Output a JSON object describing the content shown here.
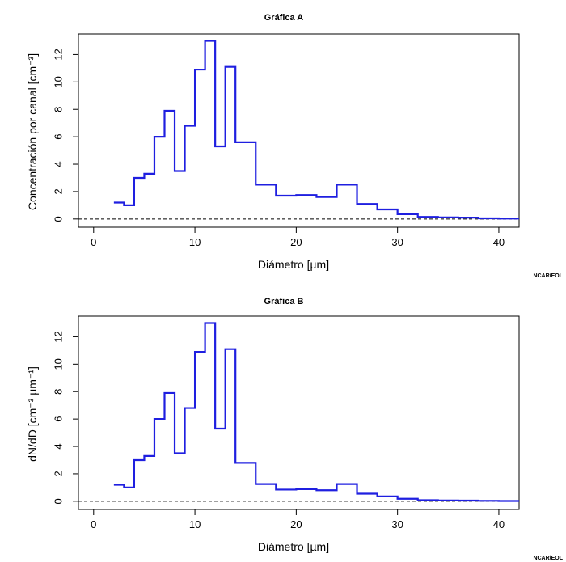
{
  "credit": "NCAR/EOL",
  "chart_data": [
    {
      "type": "line",
      "step": true,
      "title": "Gráfica A",
      "xlabel": "Diámetro [µm]",
      "ylabel": "Concentración por canal [cm⁻³]",
      "xlim": [
        -1.5,
        42
      ],
      "ylim": [
        -0.6,
        13.5
      ],
      "xticks": [
        0,
        10,
        20,
        30,
        40
      ],
      "yticks": [
        0,
        2,
        4,
        6,
        8,
        10,
        12
      ],
      "reference_line": {
        "y": 0,
        "style": "dashed"
      },
      "series_color": "#1f1fe0",
      "bins": [
        {
          "x0": 2,
          "x1": 3,
          "y": 1.2
        },
        {
          "x0": 3,
          "x1": 4,
          "y": 1.0
        },
        {
          "x0": 4,
          "x1": 5,
          "y": 3.0
        },
        {
          "x0": 5,
          "x1": 6,
          "y": 3.3
        },
        {
          "x0": 6,
          "x1": 7,
          "y": 6.0
        },
        {
          "x0": 7,
          "x1": 8,
          "y": 7.9
        },
        {
          "x0": 8,
          "x1": 9,
          "y": 3.5
        },
        {
          "x0": 9,
          "x1": 10,
          "y": 6.8
        },
        {
          "x0": 10,
          "x1": 11,
          "y": 10.9
        },
        {
          "x0": 11,
          "x1": 12,
          "y": 13.0
        },
        {
          "x0": 12,
          "x1": 13,
          "y": 5.3
        },
        {
          "x0": 13,
          "x1": 14,
          "y": 11.1
        },
        {
          "x0": 14,
          "x1": 16,
          "y": 5.6
        },
        {
          "x0": 16,
          "x1": 18,
          "y": 2.5
        },
        {
          "x0": 18,
          "x1": 20,
          "y": 1.7
        },
        {
          "x0": 20,
          "x1": 22,
          "y": 1.75
        },
        {
          "x0": 22,
          "x1": 24,
          "y": 1.6
        },
        {
          "x0": 24,
          "x1": 26,
          "y": 2.5
        },
        {
          "x0": 26,
          "x1": 28,
          "y": 1.1
        },
        {
          "x0": 28,
          "x1": 30,
          "y": 0.7
        },
        {
          "x0": 30,
          "x1": 32,
          "y": 0.35
        },
        {
          "x0": 32,
          "x1": 34,
          "y": 0.15
        },
        {
          "x0": 34,
          "x1": 36,
          "y": 0.12
        },
        {
          "x0": 36,
          "x1": 38,
          "y": 0.1
        },
        {
          "x0": 38,
          "x1": 40,
          "y": 0.05
        },
        {
          "x0": 40,
          "x1": 42,
          "y": 0.03
        }
      ]
    },
    {
      "type": "line",
      "step": true,
      "title": "Gráfica B",
      "xlabel": "Diámetro [µm]",
      "ylabel": "dN/dD [cm⁻³ µm⁻¹]",
      "xlim": [
        -1.5,
        42
      ],
      "ylim": [
        -0.6,
        13.5
      ],
      "xticks": [
        0,
        10,
        20,
        30,
        40
      ],
      "yticks": [
        0,
        2,
        4,
        6,
        8,
        10,
        12
      ],
      "reference_line": {
        "y": 0,
        "style": "dashed"
      },
      "series_color": "#1f1fe0",
      "bins": [
        {
          "x0": 2,
          "x1": 3,
          "y": 1.2
        },
        {
          "x0": 3,
          "x1": 4,
          "y": 1.0
        },
        {
          "x0": 4,
          "x1": 5,
          "y": 3.0
        },
        {
          "x0": 5,
          "x1": 6,
          "y": 3.3
        },
        {
          "x0": 6,
          "x1": 7,
          "y": 6.0
        },
        {
          "x0": 7,
          "x1": 8,
          "y": 7.9
        },
        {
          "x0": 8,
          "x1": 9,
          "y": 3.5
        },
        {
          "x0": 9,
          "x1": 10,
          "y": 6.8
        },
        {
          "x0": 10,
          "x1": 11,
          "y": 10.9
        },
        {
          "x0": 11,
          "x1": 12,
          "y": 13.0
        },
        {
          "x0": 12,
          "x1": 13,
          "y": 5.3
        },
        {
          "x0": 13,
          "x1": 14,
          "y": 11.1
        },
        {
          "x0": 14,
          "x1": 16,
          "y": 2.8
        },
        {
          "x0": 16,
          "x1": 18,
          "y": 1.25
        },
        {
          "x0": 18,
          "x1": 20,
          "y": 0.85
        },
        {
          "x0": 20,
          "x1": 22,
          "y": 0.88
        },
        {
          "x0": 22,
          "x1": 24,
          "y": 0.8
        },
        {
          "x0": 24,
          "x1": 26,
          "y": 1.25
        },
        {
          "x0": 26,
          "x1": 28,
          "y": 0.55
        },
        {
          "x0": 28,
          "x1": 30,
          "y": 0.35
        },
        {
          "x0": 30,
          "x1": 32,
          "y": 0.18
        },
        {
          "x0": 32,
          "x1": 34,
          "y": 0.08
        },
        {
          "x0": 34,
          "x1": 36,
          "y": 0.06
        },
        {
          "x0": 36,
          "x1": 38,
          "y": 0.05
        },
        {
          "x0": 38,
          "x1": 40,
          "y": 0.03
        },
        {
          "x0": 40,
          "x1": 42,
          "y": 0.02
        }
      ]
    }
  ]
}
